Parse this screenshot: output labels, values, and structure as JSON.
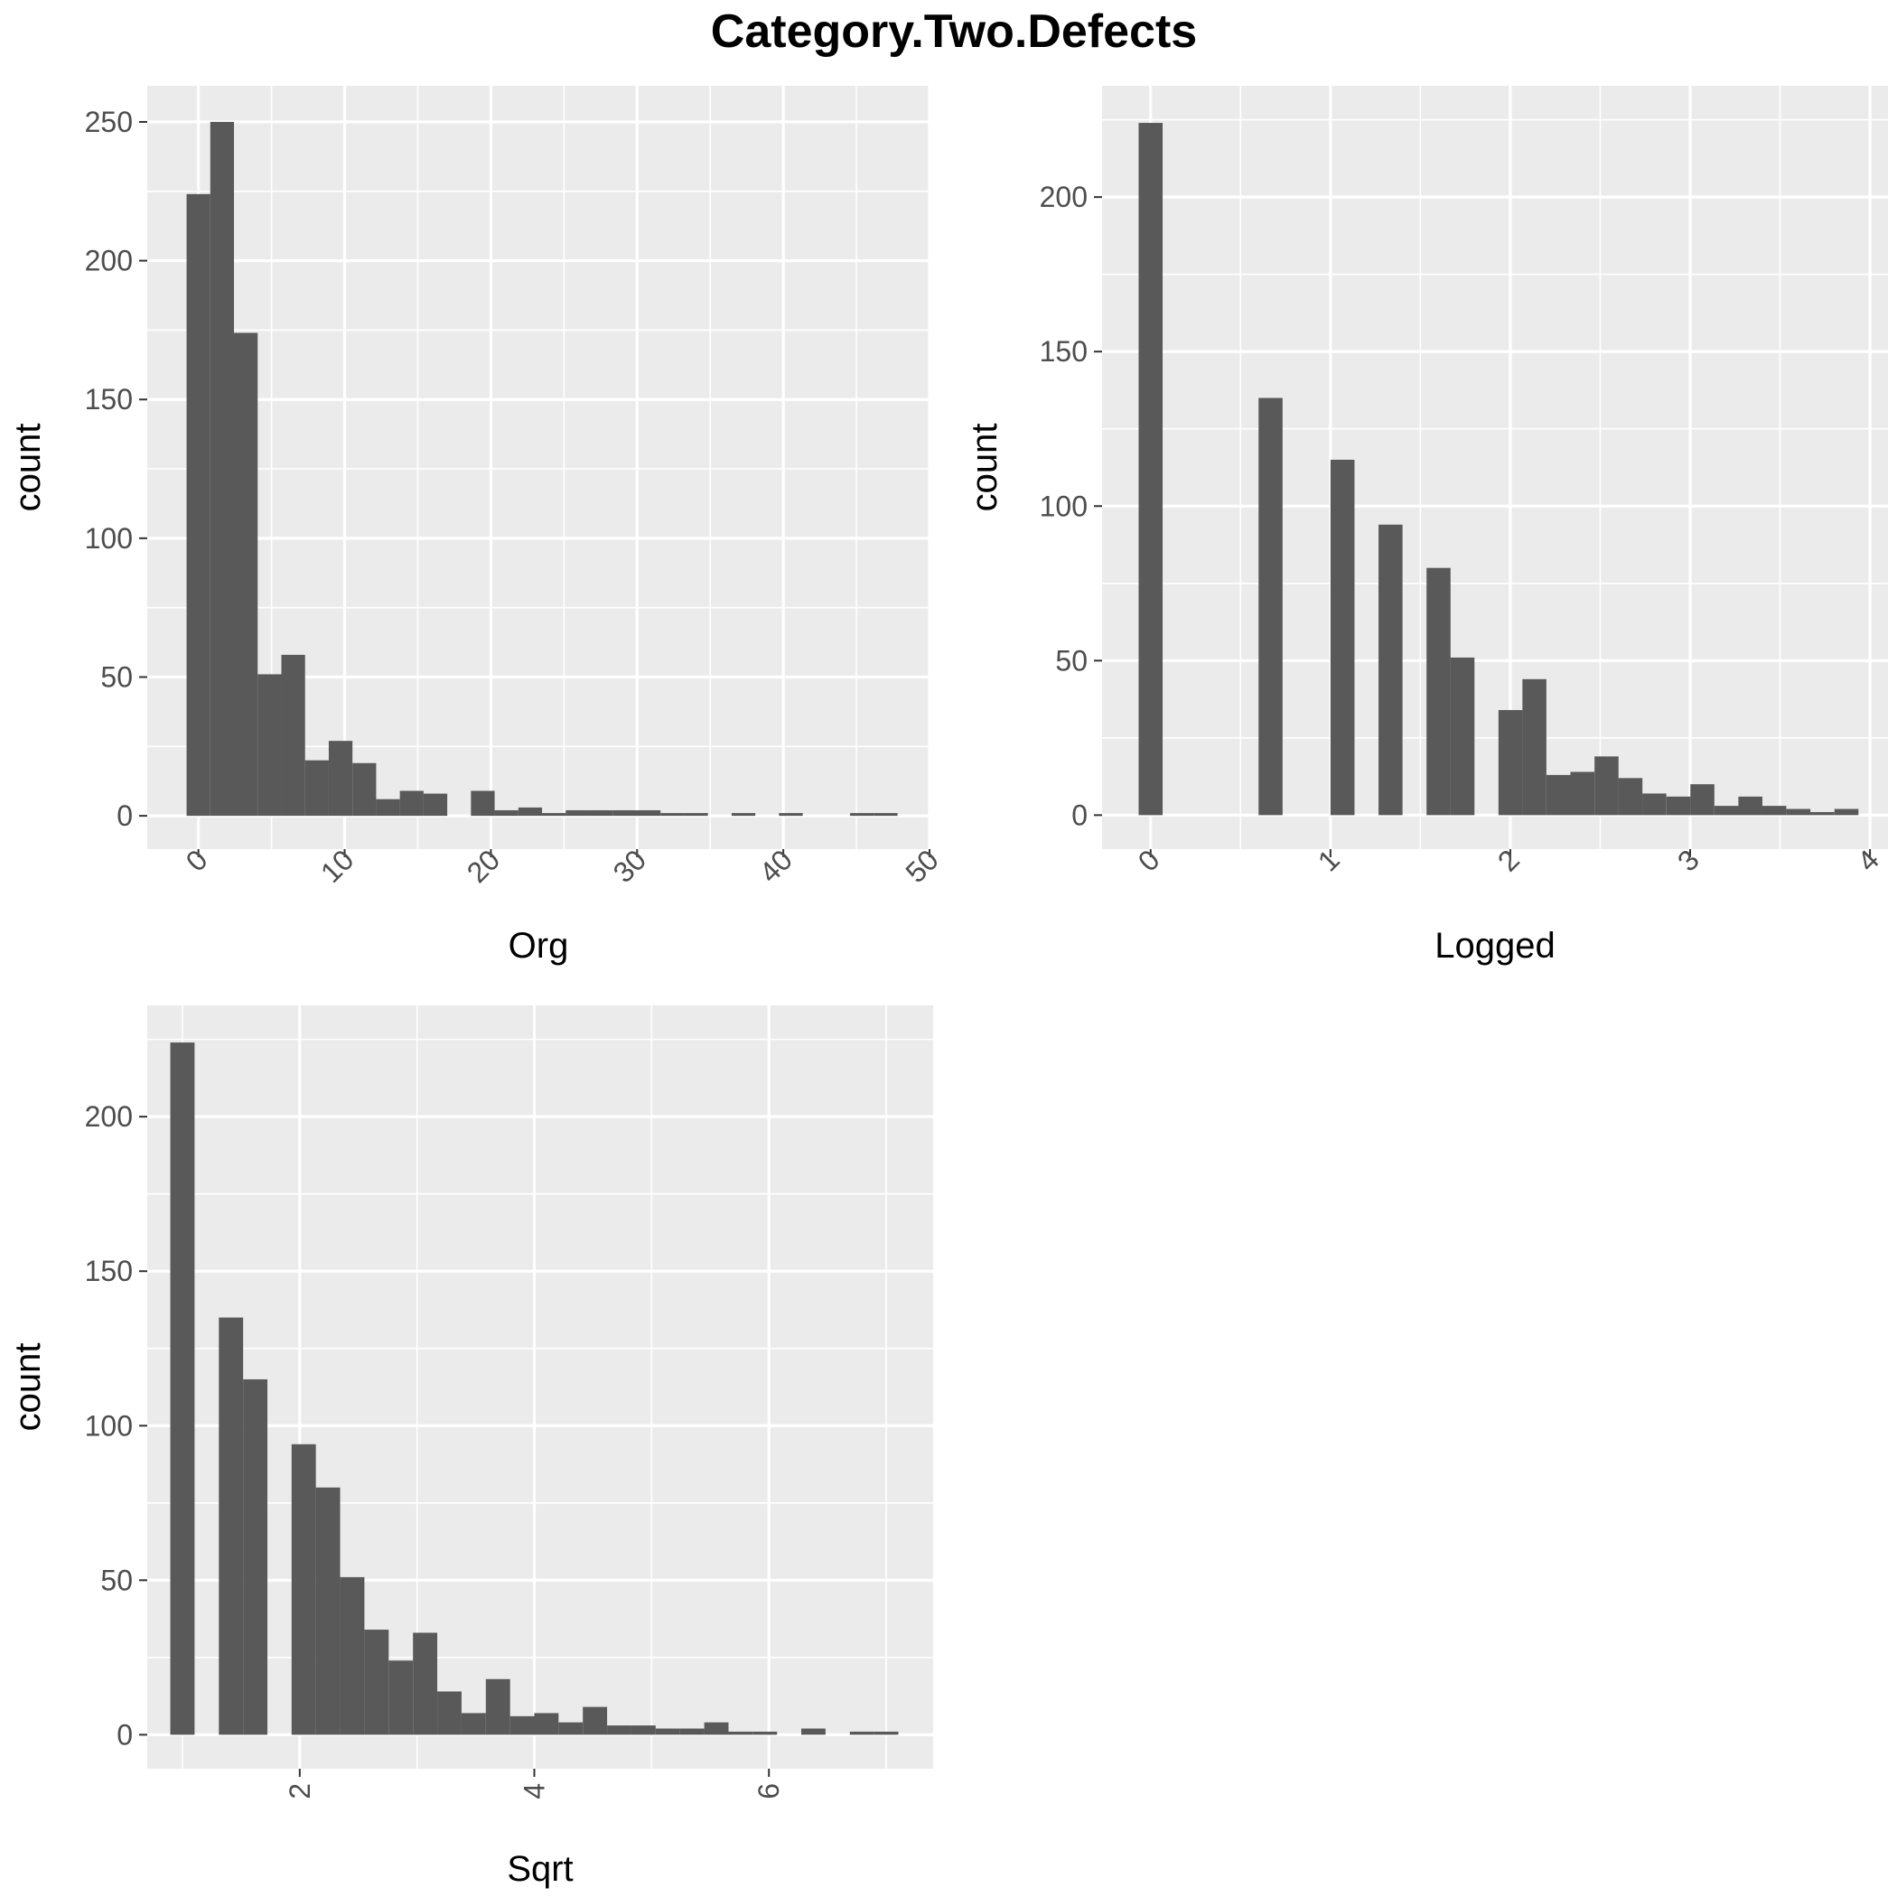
{
  "title": "Category.Two.Defects",
  "colors": {
    "panel_bg": "#EBEBEB",
    "grid": "#FFFFFF",
    "bar": "#595959",
    "tick_text": "#4D4D4D"
  },
  "chart_data": [
    {
      "type": "bar",
      "xlabel": "Org",
      "ylabel": "count",
      "xlim": [
        -3.5,
        50
      ],
      "ylim": [
        -12,
        263
      ],
      "xticks": [
        0,
        10,
        20,
        30,
        40,
        50
      ],
      "xtick_labels": [
        "0",
        "10",
        "20",
        "30",
        "40",
        "50"
      ],
      "yticks": [
        0,
        50,
        100,
        150,
        200,
        250
      ],
      "ytick_labels": [
        "0",
        "50",
        "100",
        "150",
        "200",
        "250"
      ],
      "x_rotation": -45,
      "grid": true,
      "bin_width": 1.621,
      "bins": [
        {
          "x": 0.0,
          "y": 224
        },
        {
          "x": 1.621,
          "y": 250
        },
        {
          "x": 3.241,
          "y": 174
        },
        {
          "x": 4.862,
          "y": 51
        },
        {
          "x": 6.483,
          "y": 58
        },
        {
          "x": 8.103,
          "y": 20
        },
        {
          "x": 9.724,
          "y": 27
        },
        {
          "x": 11.345,
          "y": 19
        },
        {
          "x": 12.966,
          "y": 6
        },
        {
          "x": 14.586,
          "y": 9
        },
        {
          "x": 16.207,
          "y": 8
        },
        {
          "x": 17.828,
          "y": 0
        },
        {
          "x": 19.448,
          "y": 9
        },
        {
          "x": 21.069,
          "y": 2
        },
        {
          "x": 22.69,
          "y": 3
        },
        {
          "x": 24.31,
          "y": 1
        },
        {
          "x": 25.931,
          "y": 2
        },
        {
          "x": 27.552,
          "y": 2
        },
        {
          "x": 29.172,
          "y": 2
        },
        {
          "x": 30.793,
          "y": 2
        },
        {
          "x": 32.414,
          "y": 1
        },
        {
          "x": 34.034,
          "y": 1
        },
        {
          "x": 35.655,
          "y": 0
        },
        {
          "x": 37.276,
          "y": 1
        },
        {
          "x": 38.897,
          "y": 0
        },
        {
          "x": 40.517,
          "y": 1
        },
        {
          "x": 42.138,
          "y": 0
        },
        {
          "x": 43.759,
          "y": 0
        },
        {
          "x": 45.379,
          "y": 1
        },
        {
          "x": 47.0,
          "y": 1
        }
      ]
    },
    {
      "type": "bar",
      "xlabel": "Logged",
      "ylabel": "count",
      "xlim": [
        -0.27,
        4.1
      ],
      "ylim": [
        -11,
        236
      ],
      "xticks": [
        0,
        1,
        2,
        3,
        4
      ],
      "xtick_labels": [
        "0",
        "1",
        "2",
        "3",
        "4"
      ],
      "yticks": [
        0,
        50,
        100,
        150,
        200
      ],
      "ytick_labels": [
        "0",
        "50",
        "100",
        "150",
        "200"
      ],
      "x_rotation": -45,
      "grid": true,
      "bin_width": 0.1334,
      "bins": [
        {
          "x": 0.0,
          "y": 224
        },
        {
          "x": 0.133,
          "y": 0
        },
        {
          "x": 0.267,
          "y": 0
        },
        {
          "x": 0.4,
          "y": 0
        },
        {
          "x": 0.534,
          "y": 0
        },
        {
          "x": 0.667,
          "y": 135
        },
        {
          "x": 0.8,
          "y": 0
        },
        {
          "x": 0.934,
          "y": 0
        },
        {
          "x": 1.067,
          "y": 115
        },
        {
          "x": 1.201,
          "y": 0
        },
        {
          "x": 1.334,
          "y": 94
        },
        {
          "x": 1.467,
          "y": 0
        },
        {
          "x": 1.601,
          "y": 80
        },
        {
          "x": 1.734,
          "y": 51
        },
        {
          "x": 1.868,
          "y": 0
        },
        {
          "x": 2.001,
          "y": 34
        },
        {
          "x": 2.134,
          "y": 44
        },
        {
          "x": 2.268,
          "y": 13
        },
        {
          "x": 2.401,
          "y": 14
        },
        {
          "x": 2.535,
          "y": 19
        },
        {
          "x": 2.668,
          "y": 12
        },
        {
          "x": 2.801,
          "y": 7
        },
        {
          "x": 2.935,
          "y": 6
        },
        {
          "x": 3.068,
          "y": 10
        },
        {
          "x": 3.202,
          "y": 3
        },
        {
          "x": 3.335,
          "y": 6
        },
        {
          "x": 3.468,
          "y": 3
        },
        {
          "x": 3.602,
          "y": 2
        },
        {
          "x": 3.735,
          "y": 1
        },
        {
          "x": 3.869,
          "y": 2
        }
      ]
    },
    {
      "type": "bar",
      "xlabel": "Sqrt",
      "ylabel": "count",
      "xlim": [
        0.7,
        7.4
      ],
      "ylim": [
        -11,
        236
      ],
      "xticks": [
        2,
        4,
        6
      ],
      "xtick_labels": [
        "2",
        "4",
        "6"
      ],
      "yticks": [
        0,
        50,
        100,
        150,
        200
      ],
      "ytick_labels": [
        "0",
        "50",
        "100",
        "150",
        "200"
      ],
      "x_rotation": -90,
      "grid": true,
      "bin_width": 0.2069,
      "bins": [
        {
          "x": 1.0,
          "y": 224
        },
        {
          "x": 1.207,
          "y": 0
        },
        {
          "x": 1.414,
          "y": 135
        },
        {
          "x": 1.621,
          "y": 115
        },
        {
          "x": 1.828,
          "y": 0
        },
        {
          "x": 2.034,
          "y": 94
        },
        {
          "x": 2.241,
          "y": 80
        },
        {
          "x": 2.448,
          "y": 51
        },
        {
          "x": 2.655,
          "y": 34
        },
        {
          "x": 2.862,
          "y": 24
        },
        {
          "x": 3.069,
          "y": 33
        },
        {
          "x": 3.276,
          "y": 14
        },
        {
          "x": 3.483,
          "y": 7
        },
        {
          "x": 3.69,
          "y": 18
        },
        {
          "x": 3.897,
          "y": 6
        },
        {
          "x": 4.103,
          "y": 7
        },
        {
          "x": 4.31,
          "y": 4
        },
        {
          "x": 4.517,
          "y": 9
        },
        {
          "x": 4.724,
          "y": 3
        },
        {
          "x": 4.931,
          "y": 3
        },
        {
          "x": 5.138,
          "y": 2
        },
        {
          "x": 5.345,
          "y": 2
        },
        {
          "x": 5.552,
          "y": 4
        },
        {
          "x": 5.759,
          "y": 1
        },
        {
          "x": 5.966,
          "y": 1
        },
        {
          "x": 6.172,
          "y": 0
        },
        {
          "x": 6.379,
          "y": 2
        },
        {
          "x": 6.586,
          "y": 0
        },
        {
          "x": 6.793,
          "y": 1
        },
        {
          "x": 7.0,
          "y": 1
        }
      ]
    }
  ]
}
